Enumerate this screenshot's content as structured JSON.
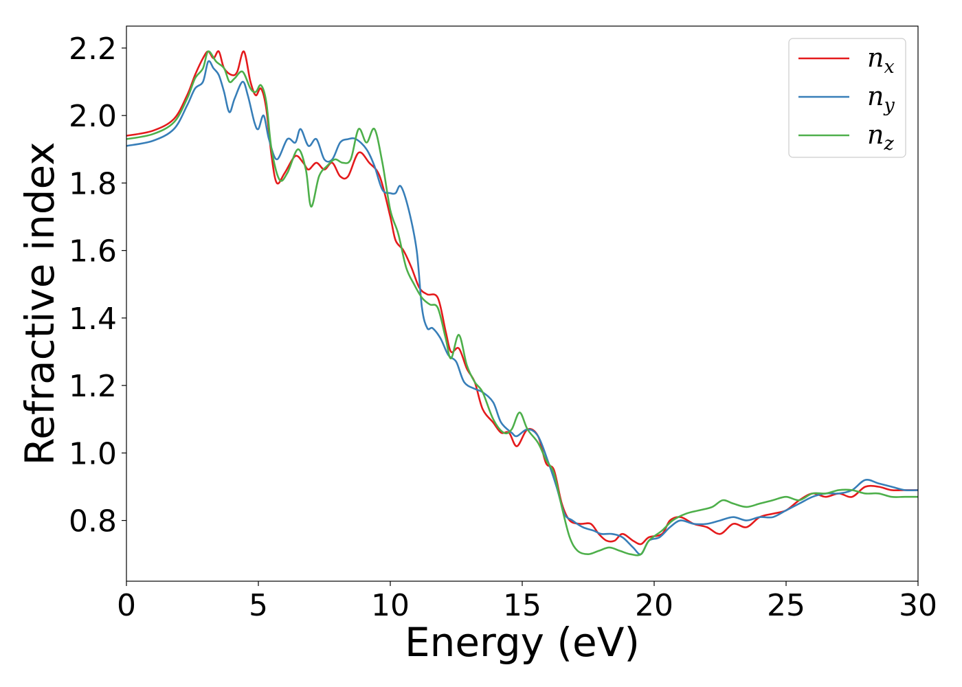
{
  "chart_data": {
    "type": "line",
    "title": "",
    "xlabel": "Energy (eV)",
    "ylabel": "Refractive index",
    "xlim": [
      0,
      30
    ],
    "ylim": [
      0.62,
      2.265
    ],
    "xticks": [
      0,
      5,
      10,
      15,
      20,
      25,
      30
    ],
    "yticks": [
      0.8,
      1.0,
      1.2,
      1.4,
      1.6,
      1.8,
      2.0,
      2.2
    ],
    "ytick_labels": [
      "0.8",
      "1.0",
      "1.2",
      "1.4",
      "1.6",
      "1.8",
      "2.0",
      "2.2"
    ],
    "grid": false,
    "legend_position": "top-right",
    "series": [
      {
        "name": "n_x",
        "label_base": "n",
        "label_sub": "x",
        "color": "#e41a1c",
        "points": [
          [
            0,
            1.94
          ],
          [
            1,
            1.955
          ],
          [
            1.8,
            1.99
          ],
          [
            2.3,
            2.06
          ],
          [
            2.6,
            2.12
          ],
          [
            2.9,
            2.17
          ],
          [
            3.1,
            2.19
          ],
          [
            3.3,
            2.17
          ],
          [
            3.5,
            2.19
          ],
          [
            3.7,
            2.14
          ],
          [
            4,
            2.12
          ],
          [
            4.2,
            2.13
          ],
          [
            4.45,
            2.19
          ],
          [
            4.7,
            2.1
          ],
          [
            4.9,
            2.06
          ],
          [
            5.1,
            2.08
          ],
          [
            5.3,
            2.02
          ],
          [
            5.5,
            1.88
          ],
          [
            5.7,
            1.8
          ],
          [
            6,
            1.83
          ],
          [
            6.4,
            1.88
          ],
          [
            6.7,
            1.86
          ],
          [
            6.9,
            1.84
          ],
          [
            7.2,
            1.86
          ],
          [
            7.5,
            1.84
          ],
          [
            7.8,
            1.86
          ],
          [
            8.1,
            1.82
          ],
          [
            8.4,
            1.82
          ],
          [
            8.8,
            1.89
          ],
          [
            9.2,
            1.86
          ],
          [
            9.6,
            1.82
          ],
          [
            10,
            1.7
          ],
          [
            10.2,
            1.63
          ],
          [
            10.5,
            1.6
          ],
          [
            10.8,
            1.55
          ],
          [
            11.1,
            1.49
          ],
          [
            11.4,
            1.47
          ],
          [
            11.8,
            1.46
          ],
          [
            12.1,
            1.36
          ],
          [
            12.3,
            1.3
          ],
          [
            12.6,
            1.31
          ],
          [
            12.9,
            1.25
          ],
          [
            13.2,
            1.21
          ],
          [
            13.5,
            1.13
          ],
          [
            13.9,
            1.09
          ],
          [
            14.2,
            1.06
          ],
          [
            14.5,
            1.06
          ],
          [
            14.8,
            1.02
          ],
          [
            15.2,
            1.07
          ],
          [
            15.6,
            1.05
          ],
          [
            15.9,
            0.97
          ],
          [
            16.2,
            0.95
          ],
          [
            16.5,
            0.85
          ],
          [
            16.8,
            0.8
          ],
          [
            17.2,
            0.79
          ],
          [
            17.6,
            0.79
          ],
          [
            17.9,
            0.76
          ],
          [
            18.2,
            0.74
          ],
          [
            18.5,
            0.74
          ],
          [
            18.8,
            0.76
          ],
          [
            19.2,
            0.74
          ],
          [
            19.5,
            0.73
          ],
          [
            19.8,
            0.75
          ],
          [
            20.3,
            0.76
          ],
          [
            20.6,
            0.8
          ],
          [
            21,
            0.81
          ],
          [
            21.5,
            0.79
          ],
          [
            22,
            0.78
          ],
          [
            22.5,
            0.76
          ],
          [
            23,
            0.79
          ],
          [
            23.5,
            0.78
          ],
          [
            24,
            0.81
          ],
          [
            24.5,
            0.82
          ],
          [
            25,
            0.83
          ],
          [
            25.5,
            0.86
          ],
          [
            26,
            0.88
          ],
          [
            26.5,
            0.87
          ],
          [
            27,
            0.88
          ],
          [
            27.5,
            0.87
          ],
          [
            28,
            0.9
          ],
          [
            28.5,
            0.9
          ],
          [
            29,
            0.89
          ],
          [
            29.5,
            0.89
          ],
          [
            30,
            0.89
          ]
        ]
      },
      {
        "name": "n_y",
        "label_base": "n",
        "label_sub": "y",
        "color": "#377eb8",
        "points": [
          [
            0,
            1.91
          ],
          [
            1,
            1.925
          ],
          [
            1.8,
            1.96
          ],
          [
            2.3,
            2.03
          ],
          [
            2.6,
            2.08
          ],
          [
            2.9,
            2.1
          ],
          [
            3.1,
            2.16
          ],
          [
            3.3,
            2.14
          ],
          [
            3.5,
            2.12
          ],
          [
            3.7,
            2.07
          ],
          [
            3.9,
            2.01
          ],
          [
            4.1,
            2.05
          ],
          [
            4.4,
            2.1
          ],
          [
            4.6,
            2.06
          ],
          [
            4.85,
            1.98
          ],
          [
            5,
            1.96
          ],
          [
            5.2,
            2.0
          ],
          [
            5.4,
            1.93
          ],
          [
            5.7,
            1.87
          ],
          [
            6.1,
            1.93
          ],
          [
            6.4,
            1.92
          ],
          [
            6.6,
            1.96
          ],
          [
            6.9,
            1.91
          ],
          [
            7.2,
            1.93
          ],
          [
            7.5,
            1.87
          ],
          [
            7.8,
            1.87
          ],
          [
            8.1,
            1.92
          ],
          [
            8.4,
            1.93
          ],
          [
            8.7,
            1.93
          ],
          [
            9.1,
            1.9
          ],
          [
            9.4,
            1.85
          ],
          [
            9.7,
            1.78
          ],
          [
            10,
            1.77
          ],
          [
            10.2,
            1.77
          ],
          [
            10.4,
            1.79
          ],
          [
            10.7,
            1.72
          ],
          [
            11,
            1.6
          ],
          [
            11.2,
            1.43
          ],
          [
            11.4,
            1.37
          ],
          [
            11.6,
            1.37
          ],
          [
            11.9,
            1.34
          ],
          [
            12.2,
            1.29
          ],
          [
            12.5,
            1.27
          ],
          [
            12.8,
            1.21
          ],
          [
            13.2,
            1.19
          ],
          [
            13.5,
            1.18
          ],
          [
            13.9,
            1.15
          ],
          [
            14.2,
            1.09
          ],
          [
            14.6,
            1.06
          ],
          [
            14.8,
            1.05
          ],
          [
            15.2,
            1.07
          ],
          [
            15.6,
            1.05
          ],
          [
            16,
            0.97
          ],
          [
            16.3,
            0.9
          ],
          [
            16.6,
            0.82
          ],
          [
            16.9,
            0.8
          ],
          [
            17.3,
            0.78
          ],
          [
            17.7,
            0.77
          ],
          [
            18,
            0.76
          ],
          [
            18.4,
            0.76
          ],
          [
            18.8,
            0.75
          ],
          [
            19.2,
            0.72
          ],
          [
            19.5,
            0.7
          ],
          [
            19.8,
            0.74
          ],
          [
            20.2,
            0.75
          ],
          [
            20.6,
            0.78
          ],
          [
            21,
            0.8
          ],
          [
            21.5,
            0.79
          ],
          [
            22,
            0.79
          ],
          [
            22.5,
            0.8
          ],
          [
            23,
            0.81
          ],
          [
            23.5,
            0.8
          ],
          [
            24,
            0.81
          ],
          [
            24.5,
            0.81
          ],
          [
            25,
            0.83
          ],
          [
            25.5,
            0.85
          ],
          [
            26,
            0.87
          ],
          [
            26.5,
            0.88
          ],
          [
            27,
            0.88
          ],
          [
            27.5,
            0.89
          ],
          [
            28,
            0.92
          ],
          [
            28.5,
            0.91
          ],
          [
            29,
            0.9
          ],
          [
            29.5,
            0.89
          ],
          [
            30,
            0.89
          ]
        ]
      },
      {
        "name": "n_z",
        "label_base": "n",
        "label_sub": "z",
        "color": "#4daf4a",
        "points": [
          [
            0,
            1.93
          ],
          [
            1,
            1.945
          ],
          [
            1.8,
            1.98
          ],
          [
            2.3,
            2.05
          ],
          [
            2.6,
            2.11
          ],
          [
            2.9,
            2.14
          ],
          [
            3.1,
            2.19
          ],
          [
            3.4,
            2.16
          ],
          [
            3.7,
            2.14
          ],
          [
            3.9,
            2.1
          ],
          [
            4.1,
            2.11
          ],
          [
            4.4,
            2.13
          ],
          [
            4.7,
            2.08
          ],
          [
            4.9,
            2.07
          ],
          [
            5.1,
            2.09
          ],
          [
            5.3,
            2.04
          ],
          [
            5.5,
            1.9
          ],
          [
            5.8,
            1.81
          ],
          [
            6.1,
            1.83
          ],
          [
            6.5,
            1.9
          ],
          [
            6.8,
            1.84
          ],
          [
            7,
            1.73
          ],
          [
            7.3,
            1.82
          ],
          [
            7.6,
            1.85
          ],
          [
            7.9,
            1.87
          ],
          [
            8.2,
            1.86
          ],
          [
            8.5,
            1.87
          ],
          [
            8.8,
            1.96
          ],
          [
            9.1,
            1.92
          ],
          [
            9.4,
            1.96
          ],
          [
            9.7,
            1.86
          ],
          [
            10,
            1.72
          ],
          [
            10.3,
            1.65
          ],
          [
            10.6,
            1.55
          ],
          [
            10.9,
            1.5
          ],
          [
            11.2,
            1.46
          ],
          [
            11.5,
            1.44
          ],
          [
            11.8,
            1.43
          ],
          [
            12.1,
            1.34
          ],
          [
            12.3,
            1.28
          ],
          [
            12.6,
            1.35
          ],
          [
            12.9,
            1.26
          ],
          [
            13.2,
            1.21
          ],
          [
            13.5,
            1.18
          ],
          [
            13.9,
            1.1
          ],
          [
            14.3,
            1.06
          ],
          [
            14.6,
            1.07
          ],
          [
            14.9,
            1.12
          ],
          [
            15.2,
            1.07
          ],
          [
            15.6,
            1.03
          ],
          [
            15.9,
            0.98
          ],
          [
            16.2,
            0.94
          ],
          [
            16.5,
            0.84
          ],
          [
            16.8,
            0.75
          ],
          [
            17.1,
            0.71
          ],
          [
            17.5,
            0.7
          ],
          [
            17.9,
            0.71
          ],
          [
            18.3,
            0.72
          ],
          [
            18.7,
            0.71
          ],
          [
            19.1,
            0.7
          ],
          [
            19.5,
            0.7
          ],
          [
            19.8,
            0.74
          ],
          [
            20.3,
            0.77
          ],
          [
            20.7,
            0.8
          ],
          [
            21.2,
            0.82
          ],
          [
            21.7,
            0.83
          ],
          [
            22.2,
            0.84
          ],
          [
            22.6,
            0.86
          ],
          [
            23,
            0.85
          ],
          [
            23.5,
            0.84
          ],
          [
            24,
            0.85
          ],
          [
            24.5,
            0.86
          ],
          [
            25,
            0.87
          ],
          [
            25.5,
            0.86
          ],
          [
            26,
            0.88
          ],
          [
            26.5,
            0.88
          ],
          [
            27,
            0.89
          ],
          [
            27.5,
            0.89
          ],
          [
            28,
            0.88
          ],
          [
            28.5,
            0.88
          ],
          [
            29,
            0.87
          ],
          [
            29.5,
            0.87
          ],
          [
            30,
            0.87
          ]
        ]
      }
    ]
  }
}
